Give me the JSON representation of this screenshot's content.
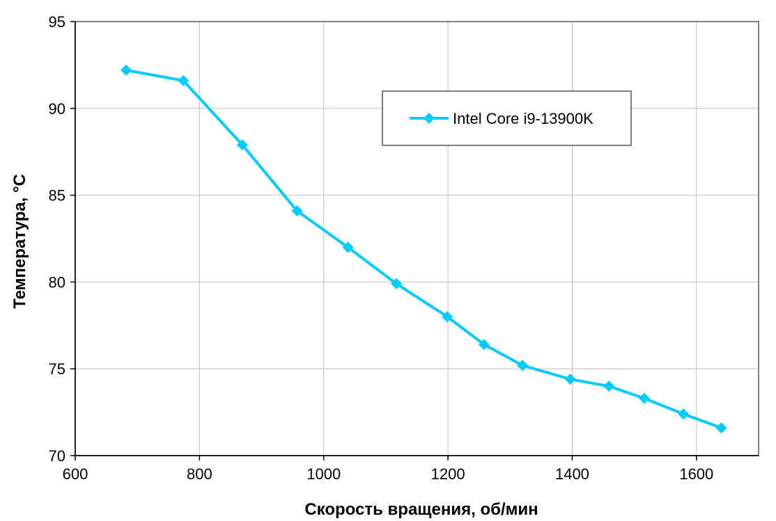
{
  "chart_data": {
    "type": "line",
    "title": "",
    "xlabel": "Скорость вращения, об/мин",
    "ylabel": "Температура, °C",
    "xlim": [
      600,
      1700
    ],
    "ylim": [
      70,
      95
    ],
    "xticks": [
      600,
      800,
      1000,
      1200,
      1400,
      1600
    ],
    "yticks": [
      70,
      75,
      80,
      85,
      90,
      95
    ],
    "grid": true,
    "legend_position": "top-right",
    "series": [
      {
        "name": "Intel Core i9-13900K",
        "color": "#00ccff",
        "marker": "diamond",
        "x": [
          682,
          774,
          869,
          957,
          1039,
          1117,
          1199,
          1258,
          1320,
          1397,
          1459,
          1516,
          1579,
          1640
        ],
        "y": [
          92.2,
          91.6,
          87.9,
          84.1,
          82.0,
          79.9,
          78.0,
          76.4,
          75.2,
          74.4,
          74.0,
          73.3,
          72.4,
          71.6
        ]
      }
    ]
  }
}
